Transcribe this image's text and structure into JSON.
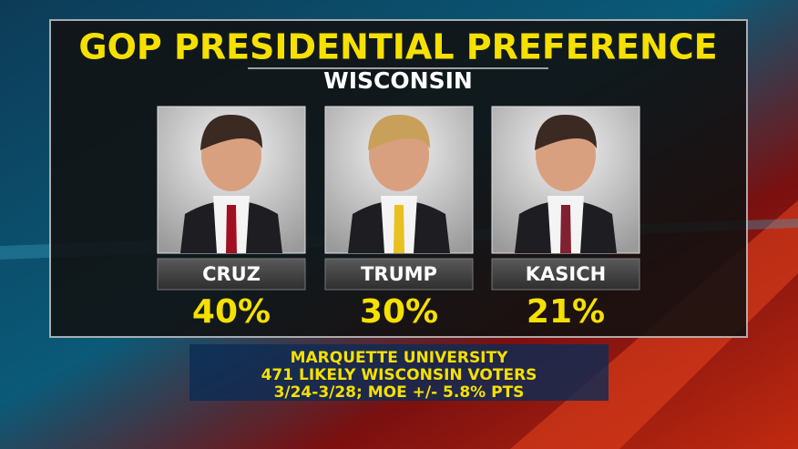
{
  "header": {
    "title": "GOP PRESIDENTIAL PREFERENCE",
    "subtitle": "WISCONSIN"
  },
  "candidates": [
    {
      "name": "CRUZ",
      "percent": "40%"
    },
    {
      "name": "TRUMP",
      "percent": "30%"
    },
    {
      "name": "KASICH",
      "percent": "21%"
    }
  ],
  "source": {
    "lines": [
      "MARQUETTE UNIVERSITY",
      "471 LIKELY WISCONSIN VOTERS",
      "3/24-3/28; MOE +/- 5.8% PTS"
    ]
  }
}
